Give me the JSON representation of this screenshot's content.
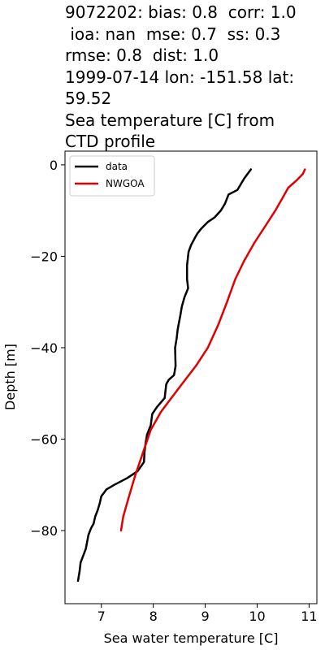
{
  "title_lines": [
    "9072202: bias: 0.8  corr: 1.0",
    " ioa: nan  mse: 0.7  ss: 0.3",
    "rmse: 0.8  dist: 1.0",
    "1999-07-14 lon: -151.58 lat:",
    "59.52",
    "Sea temperature [C] from",
    "CTD profile"
  ],
  "chart_data": {
    "type": "line",
    "xlabel": "Sea water temperature [C]",
    "ylabel": "Depth [m]",
    "xlim": [
      6.3,
      11.15
    ],
    "ylim": [
      -96,
      3
    ],
    "xticks": [
      7,
      8,
      9,
      10,
      11
    ],
    "yticks": [
      0,
      -20,
      -40,
      -60,
      -80
    ],
    "ytick_labels": [
      "0",
      "−20",
      "−40",
      "−60",
      "−80"
    ],
    "grid": false,
    "legend_position": "top-left",
    "series": [
      {
        "name": "data",
        "color": "#000000",
        "points": [
          [
            9.88,
            -1
          ],
          [
            9.75,
            -3
          ],
          [
            9.62,
            -5.5
          ],
          [
            9.45,
            -6.5
          ],
          [
            9.38,
            -8.5
          ],
          [
            9.3,
            -10
          ],
          [
            9.18,
            -11.5
          ],
          [
            9.05,
            -12.5
          ],
          [
            8.92,
            -14
          ],
          [
            8.85,
            -15
          ],
          [
            8.8,
            -16
          ],
          [
            8.73,
            -17.5
          ],
          [
            8.68,
            -19
          ],
          [
            8.65,
            -22
          ],
          [
            8.65,
            -25
          ],
          [
            8.67,
            -27
          ],
          [
            8.6,
            -29
          ],
          [
            8.55,
            -31
          ],
          [
            8.52,
            -33
          ],
          [
            8.47,
            -36
          ],
          [
            8.45,
            -38
          ],
          [
            8.42,
            -40
          ],
          [
            8.43,
            -44
          ],
          [
            8.4,
            -46
          ],
          [
            8.3,
            -47
          ],
          [
            8.25,
            -48
          ],
          [
            8.22,
            -51
          ],
          [
            8.07,
            -53
          ],
          [
            7.98,
            -54.5
          ],
          [
            7.95,
            -57
          ],
          [
            7.88,
            -59
          ],
          [
            7.85,
            -61
          ],
          [
            7.83,
            -63
          ],
          [
            7.82,
            -65
          ],
          [
            7.7,
            -67
          ],
          [
            7.5,
            -68.5
          ],
          [
            7.25,
            -70
          ],
          [
            7.1,
            -71
          ],
          [
            7.0,
            -72.5
          ],
          [
            6.97,
            -74
          ],
          [
            6.93,
            -75.5
          ],
          [
            6.88,
            -77
          ],
          [
            6.85,
            -78.5
          ],
          [
            6.8,
            -79.5
          ],
          [
            6.75,
            -81
          ],
          [
            6.7,
            -84
          ],
          [
            6.65,
            -85.5
          ],
          [
            6.6,
            -87
          ],
          [
            6.58,
            -89
          ],
          [
            6.55,
            -91
          ]
        ]
      },
      {
        "name": "NWGOA",
        "color": "#e00000",
        "points": [
          [
            10.92,
            -1
          ],
          [
            10.88,
            -2
          ],
          [
            10.75,
            -3.5
          ],
          [
            10.6,
            -5
          ],
          [
            10.5,
            -7
          ],
          [
            10.35,
            -10
          ],
          [
            10.18,
            -13
          ],
          [
            9.95,
            -17
          ],
          [
            9.75,
            -21
          ],
          [
            9.58,
            -25
          ],
          [
            9.42,
            -30
          ],
          [
            9.25,
            -35
          ],
          [
            9.05,
            -40
          ],
          [
            8.82,
            -44
          ],
          [
            8.55,
            -48
          ],
          [
            8.35,
            -51
          ],
          [
            8.15,
            -54
          ],
          [
            7.95,
            -58
          ],
          [
            7.8,
            -63
          ],
          [
            7.65,
            -68
          ],
          [
            7.52,
            -73
          ],
          [
            7.42,
            -77
          ],
          [
            7.38,
            -80
          ]
        ]
      }
    ]
  }
}
